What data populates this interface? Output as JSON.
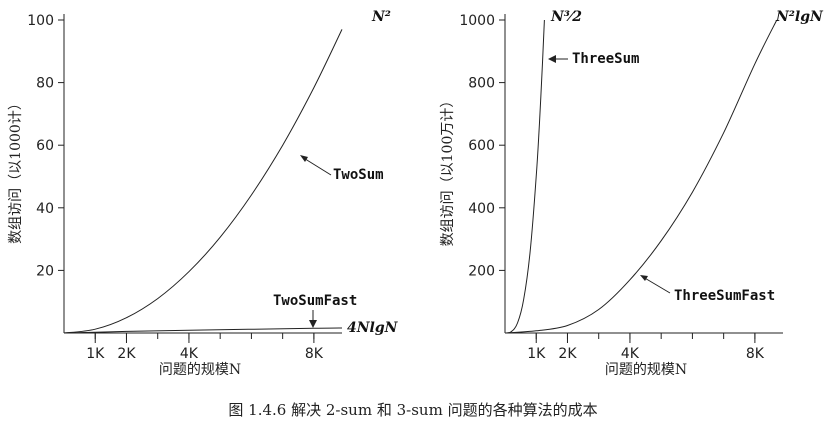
{
  "caption": "图 1.4.6    解决 2-sum 和 3-sum 问题的各种算法的成本",
  "chart_data": [
    {
      "type": "line",
      "xlabel": "问题的规模N",
      "ylabel": "数组访问（以1000计）",
      "x_ticks": [
        "1K",
        "2K",
        "4K",
        "8K"
      ],
      "x_tick_values": [
        1,
        2,
        4,
        8
      ],
      "y_ticks": [
        20,
        40,
        60,
        80,
        100
      ],
      "xlim": [
        0,
        8.9
      ],
      "ylim": [
        0,
        100
      ],
      "series": [
        {
          "name": "TwoSum",
          "formula": "N2",
          "label": "N²",
          "x": [
            0,
            1,
            2,
            3,
            4,
            5,
            6,
            7,
            8,
            8.9
          ],
          "y": [
            0,
            1.2,
            4.9,
            11,
            19.6,
            30.6,
            44.1,
            60,
            78.4,
            97
          ]
        },
        {
          "name": "TwoSumFast",
          "formula": "4NlgN",
          "label": "4NlgN",
          "x": [
            0,
            1,
            2,
            4,
            8,
            8.9
          ],
          "y": [
            0,
            0.25,
            0.5,
            0.9,
            1.5,
            1.6
          ]
        }
      ],
      "annotations": [
        {
          "text": "TwoSum",
          "arrow_to": [
            7.6,
            58.5
          ]
        },
        {
          "text": "TwoSumFast",
          "arrow_to": [
            8,
            1.7
          ]
        }
      ]
    },
    {
      "type": "line",
      "xlabel": "问题的规模N",
      "ylabel": "数组访问（以100万计）",
      "x_ticks": [
        "1K",
        "2K",
        "4K",
        "8K"
      ],
      "x_tick_values": [
        1,
        2,
        4,
        8
      ],
      "y_ticks": [
        200,
        400,
        600,
        800,
        1000
      ],
      "xlim": [
        0,
        8.9
      ],
      "ylim": [
        0,
        1000
      ],
      "series": [
        {
          "name": "ThreeSum",
          "formula": "N3/2",
          "label": "N³⁄2",
          "x": [
            0,
            0.2,
            0.4,
            0.6,
            0.8,
            1,
            1.1,
            1.2,
            1.26
          ],
          "y": [
            0,
            4,
            32,
            108,
            256,
            500,
            666,
            864,
            1000
          ]
        },
        {
          "name": "ThreeSumFast",
          "formula": "N2lgN",
          "label": "N²lgN",
          "x": [
            0,
            1,
            2,
            3,
            4,
            5,
            6,
            7,
            8,
            8.7
          ],
          "y": [
            0,
            7,
            24,
            75,
            170,
            295,
            450,
            640,
            860,
            1000
          ]
        }
      ],
      "annotations": [
        {
          "text": "ThreeSum",
          "arrow_to": [
            1.26,
            890
          ]
        },
        {
          "text": "ThreeSumFast",
          "arrow_to": [
            4.3,
            180
          ]
        }
      ]
    }
  ]
}
